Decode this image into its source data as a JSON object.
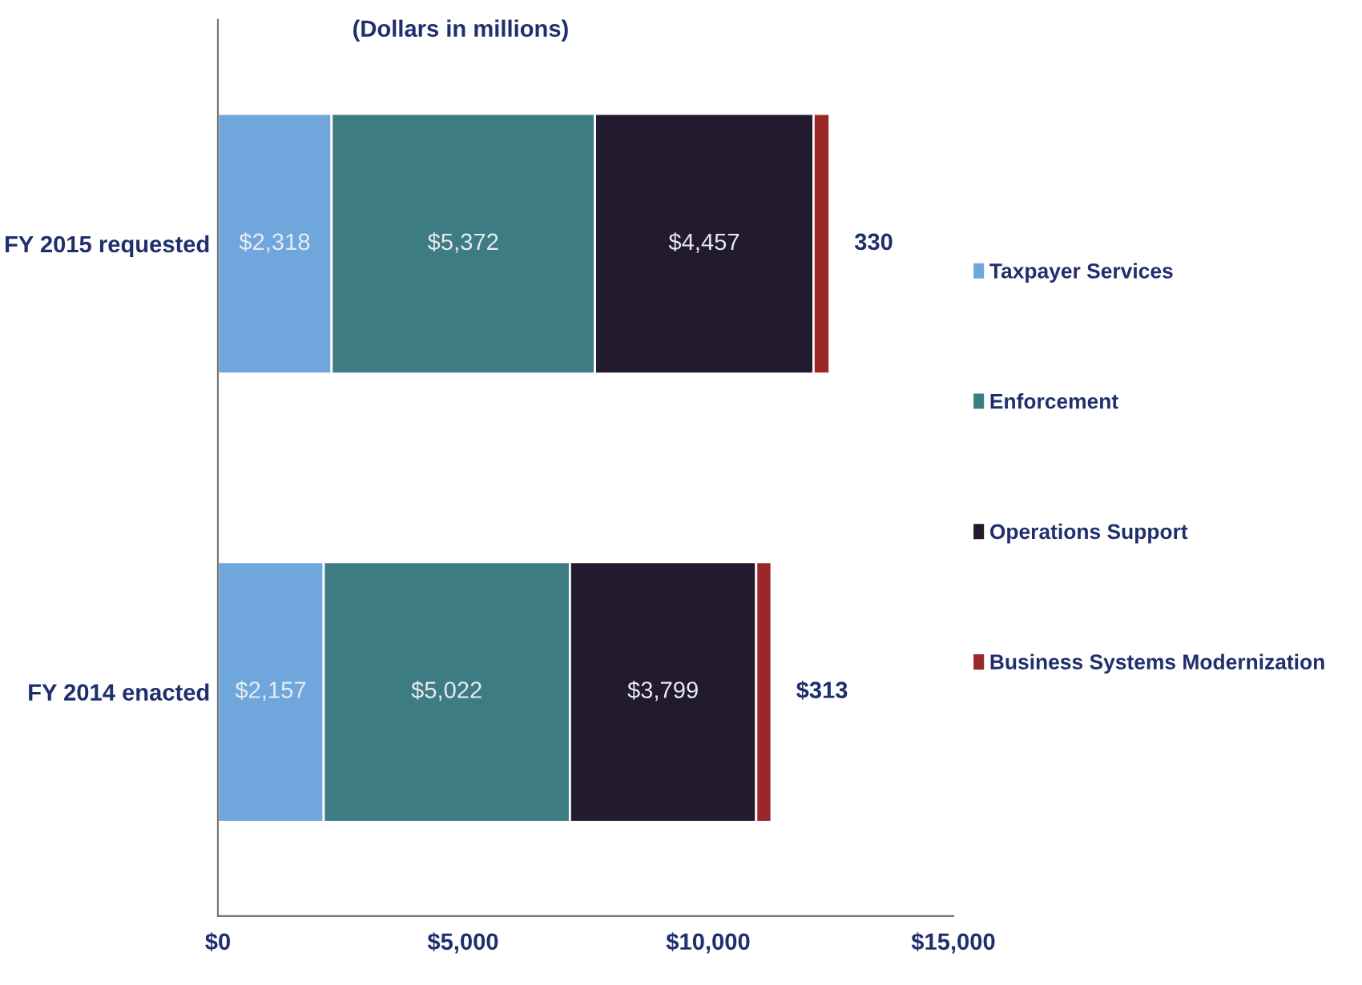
{
  "chart_data": {
    "type": "bar",
    "orientation": "horizontal",
    "stacked": true,
    "title": "(Dollars in millions)",
    "categories": [
      "FY 2015 requested",
      "FY 2014 enacted"
    ],
    "series": [
      {
        "name": "Taxpayer Services",
        "color": "#6fa6dc",
        "values": [
          2318,
          2157
        ],
        "value_labels": [
          "$2,318",
          "$2,157"
        ]
      },
      {
        "name": "Enforcement",
        "color": "#3c7c82",
        "values": [
          5372,
          5022
        ],
        "value_labels": [
          "$5,372",
          "$5,022"
        ]
      },
      {
        "name": "Operations Support",
        "color": "#221a2e",
        "values": [
          4457,
          3799
        ],
        "value_labels": [
          "$4,457",
          "$3,799"
        ]
      },
      {
        "name": "Business Systems Modernization",
        "color": "#9a2828",
        "values": [
          330,
          313
        ],
        "value_labels": [
          "330",
          "$313"
        ]
      }
    ],
    "xlim": [
      0,
      15000
    ],
    "xticks": [
      {
        "value": 0,
        "label": "$0"
      },
      {
        "value": 5000,
        "label": "$5,000"
      },
      {
        "value": 10000,
        "label": "$10,000"
      },
      {
        "value": 15000,
        "label": "$15,000"
      }
    ],
    "grid": false,
    "legend": "right"
  }
}
